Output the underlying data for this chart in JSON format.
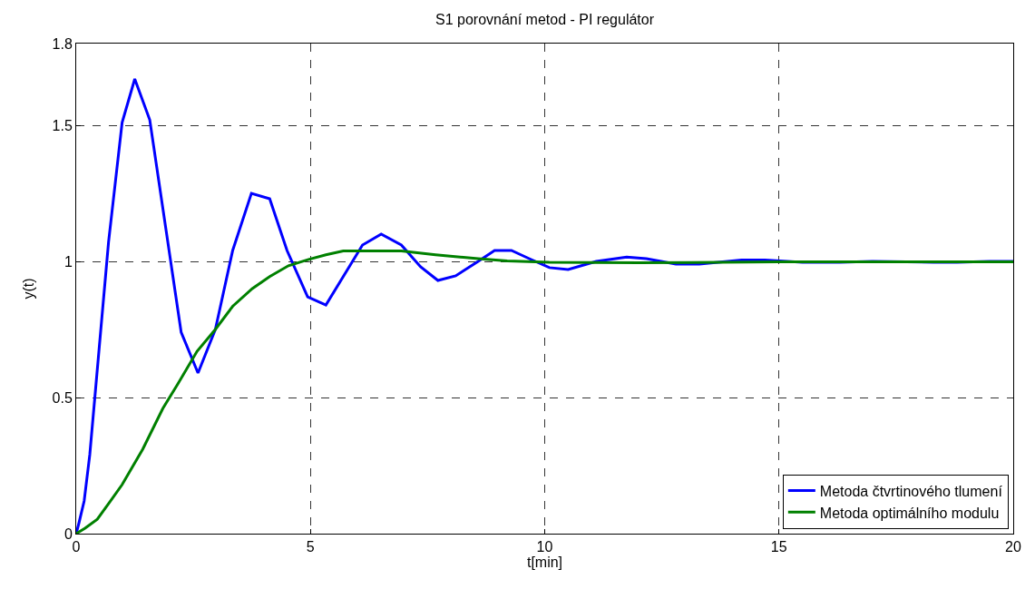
{
  "chart_data": {
    "type": "line",
    "title": "S1 porovnání metod - PI regulátor",
    "xlabel": "t[min]",
    "ylabel": "y(t)",
    "xlim": [
      0,
      20
    ],
    "ylim": [
      0,
      1.8
    ],
    "xticks": [
      0,
      5,
      10,
      15,
      20
    ],
    "yticks": [
      0,
      0.5,
      1,
      1.5,
      1.8
    ],
    "grid": true,
    "legend": "bottom right",
    "line_style": "solid",
    "series": [
      {
        "name": "Metoda čtvrtinového tlumení",
        "color": "#0000ff",
        "x": [
          0,
          0.06,
          0.17,
          0.29,
          0.69,
          0.98,
          1.25,
          1.57,
          2.24,
          2.6,
          2.97,
          3.34,
          3.74,
          4.13,
          4.5,
          4.94,
          5.33,
          6.11,
          6.51,
          6.94,
          7.35,
          7.72,
          8.1,
          8.58,
          8.93,
          9.29,
          9.67,
          10.1,
          10.5,
          11.1,
          11.75,
          12.17,
          12.8,
          13.3,
          14.2,
          14.7,
          15.5,
          16.3,
          17,
          18.3,
          18.8,
          19.5,
          20
        ],
        "values": [
          0,
          0.04,
          0.12,
          0.29,
          1.07,
          1.51,
          1.67,
          1.52,
          0.74,
          0.59,
          0.75,
          1.04,
          1.25,
          1.23,
          1.04,
          0.87,
          0.84,
          1.06,
          1.1,
          1.06,
          0.98,
          0.93,
          0.947,
          1.0,
          1.04,
          1.04,
          1.01,
          0.977,
          0.97,
          1.0,
          1.016,
          1.01,
          0.99,
          0.99,
          1.005,
          1.005,
          0.997,
          0.997,
          1.0,
          0.997,
          0.997,
          1.0,
          1.0
        ]
      },
      {
        "name": "Metoda optimálního modulu",
        "color": "#008000",
        "x": [
          0,
          0.19,
          0.45,
          0.72,
          0.98,
          1.42,
          1.85,
          2.17,
          2.58,
          2.97,
          3.34,
          3.76,
          4.13,
          4.53,
          4.96,
          5.33,
          5.7,
          6.94,
          7.67,
          8.58,
          9.2,
          10.1,
          12,
          15,
          20
        ],
        "values": [
          0,
          0.02,
          0.053,
          0.117,
          0.18,
          0.31,
          0.46,
          0.55,
          0.67,
          0.75,
          0.835,
          0.9,
          0.944,
          0.984,
          1.007,
          1.024,
          1.038,
          1.038,
          1.024,
          1.01,
          1.002,
          0.997,
          0.995,
          0.998,
          0.998
        ]
      }
    ]
  }
}
